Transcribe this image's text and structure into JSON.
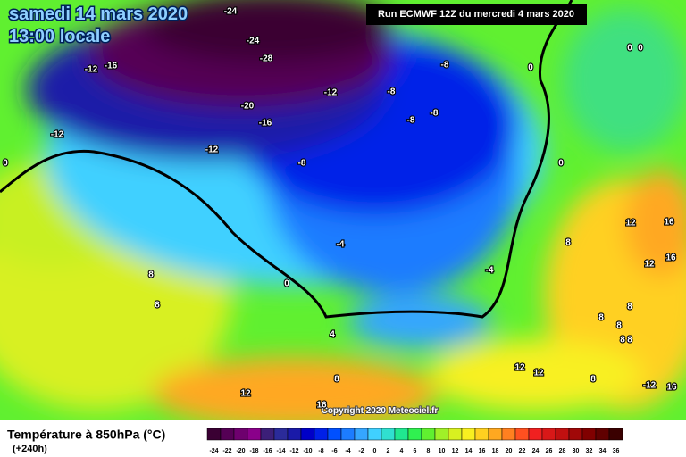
{
  "header": {
    "date": "samedi 14 mars 2020",
    "time": "13:00 locale",
    "run": "Run ECMWF 12Z du mercredi 4 mars 2020"
  },
  "map": {
    "labels": [
      -24,
      -24,
      -28,
      -12,
      -16,
      -8,
      0,
      0,
      0,
      -8,
      -12,
      -20,
      -16,
      -8,
      -8,
      -12,
      -12,
      -8,
      0,
      0,
      16,
      12,
      8,
      -4,
      16,
      12,
      -4,
      8,
      0,
      8,
      8,
      8,
      8,
      8,
      4,
      8,
      12,
      12,
      8,
      8,
      -12,
      16,
      12,
      16
    ],
    "copyright": "Copyright 2020 Meteociel.fr"
  },
  "legend": {
    "title": "Température à 850hPa (°C)",
    "lead": "(+240h)",
    "ticks": [
      -24,
      -22,
      -20,
      -18,
      -16,
      -14,
      -12,
      -10,
      -8,
      -6,
      -4,
      -2,
      0,
      2,
      4,
      6,
      8,
      10,
      12,
      14,
      16,
      18,
      20,
      22,
      24,
      26,
      28,
      30,
      32,
      34,
      36
    ],
    "colors": [
      "#3a0033",
      "#550055",
      "#6e006e",
      "#8a008a",
      "#3c1f78",
      "#2b2b9a",
      "#1a1aa8",
      "#0000c8",
      "#0020e8",
      "#0050ff",
      "#1c7cff",
      "#35a6ff",
      "#40d0ff",
      "#30e0d0",
      "#20e890",
      "#30f050",
      "#60f030",
      "#a0f028",
      "#d8f020",
      "#f8f020",
      "#ffd020",
      "#ffa820",
      "#ff8020",
      "#ff5020",
      "#f02020",
      "#d81818",
      "#c01010",
      "#a00808",
      "#800000",
      "#600000",
      "#3a0000"
    ]
  }
}
